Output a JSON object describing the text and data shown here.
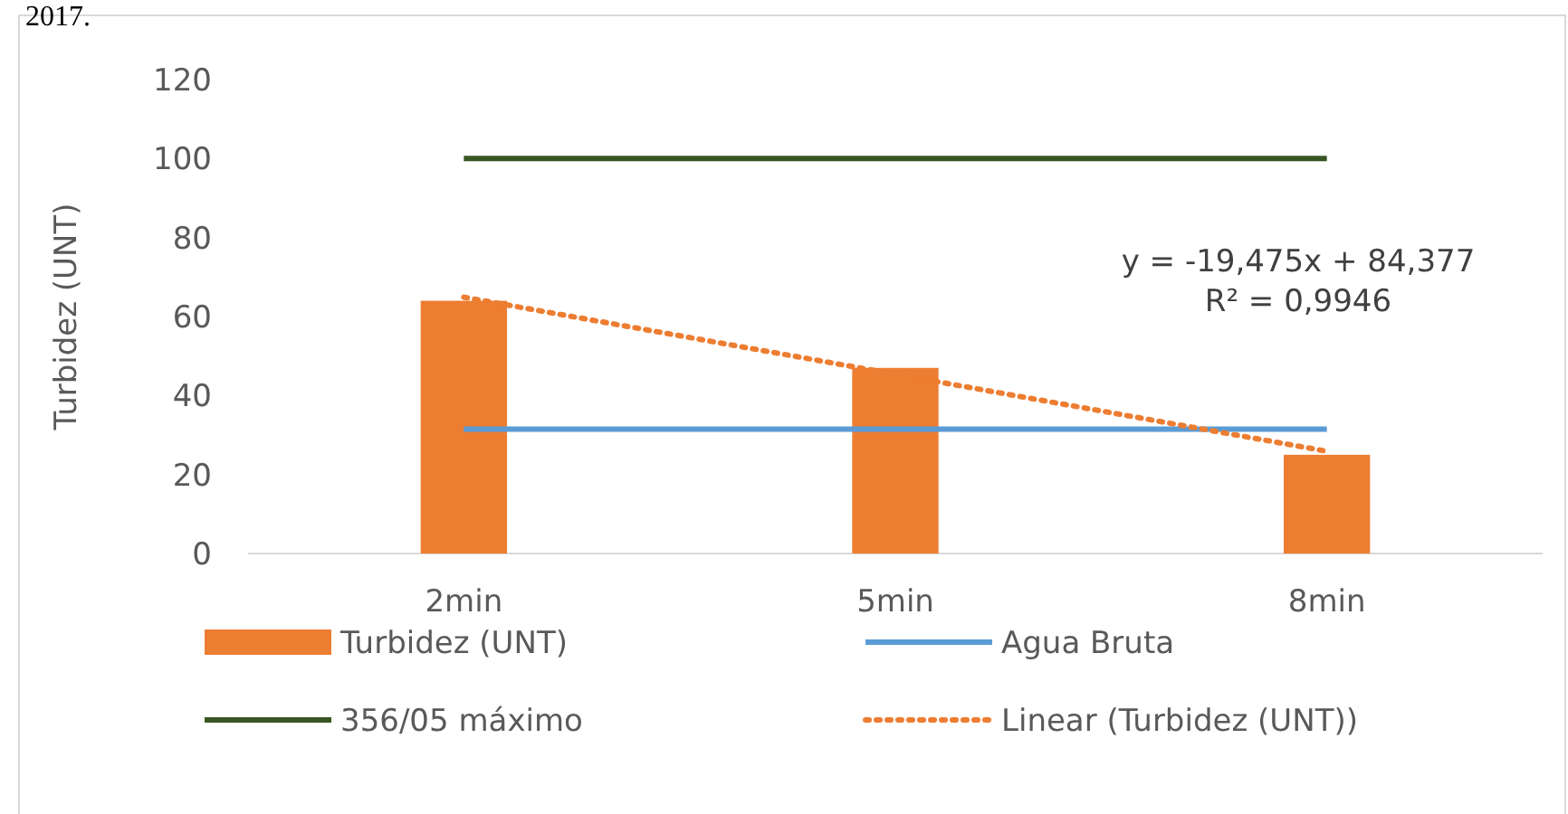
{
  "chart_data": {
    "type": "bar",
    "ylabel": "Turbidez (UNT)",
    "categories": [
      "2min",
      "5min",
      "8min"
    ],
    "series": [
      {
        "name": "Turbidez (UNT)",
        "color": "#ed7d31",
        "values": [
          64,
          47,
          25
        ]
      },
      {
        "name": "Agua Bruta",
        "type": "line",
        "color": "#5b9bd5",
        "values": [
          31.5,
          31.5,
          31.5
        ]
      },
      {
        "name": "356/05 máximo",
        "type": "line",
        "color": "#375623",
        "values": [
          100,
          100,
          100
        ]
      },
      {
        "name": "Linear (Turbidez (UNT))",
        "type": "line",
        "line_style": "dotted",
        "color": "#ed7d31",
        "values": [
          64.9,
          45.4,
          25.9
        ]
      }
    ],
    "ylim": [
      0,
      120
    ],
    "yticks": [
      0,
      20,
      40,
      60,
      80,
      100,
      120
    ],
    "legend": "bottom",
    "annotations": [
      "y = -19,475x + 84,377",
      "R² = 0,9946",
      "2017."
    ]
  }
}
